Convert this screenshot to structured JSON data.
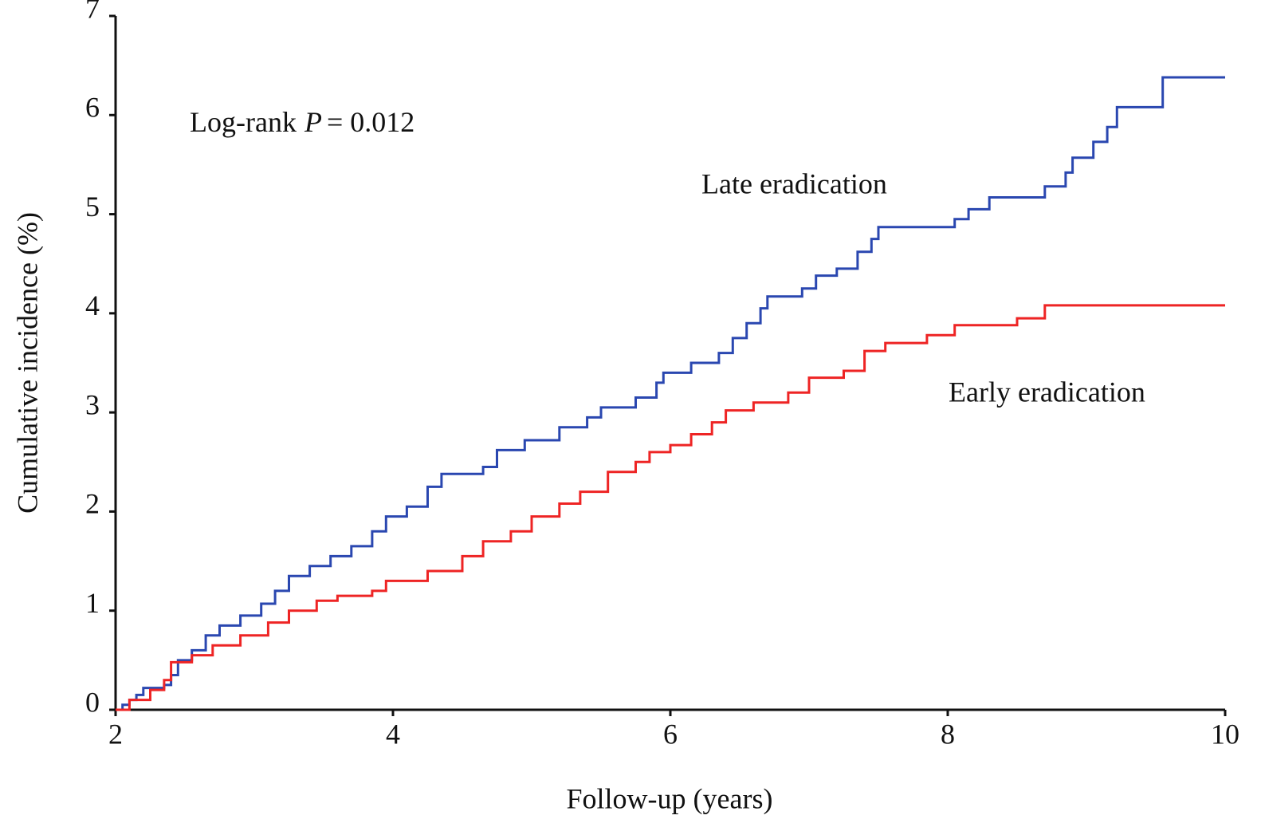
{
  "chart_data": {
    "type": "step",
    "x_label": "Follow-up (years)",
    "y_label": "Cumulative incidence (%)",
    "annotation": {
      "text": "Log-rank",
      "symbol": "P",
      "value": "= 0.012"
    },
    "xlim": [
      2,
      10
    ],
    "xticks": [
      2,
      4,
      6,
      8,
      10
    ],
    "ylim": [
      0,
      7
    ],
    "yticks": [
      0,
      1,
      2,
      3,
      4,
      5,
      6,
      7
    ],
    "grid": false,
    "series": [
      {
        "name": "Late eradication",
        "color": "#2a47b0",
        "x": [
          2.0,
          2.05,
          2.1,
          2.15,
          2.2,
          2.35,
          2.4,
          2.45,
          2.55,
          2.65,
          2.75,
          2.9,
          3.05,
          3.15,
          3.25,
          3.4,
          3.55,
          3.7,
          3.85,
          3.95,
          4.1,
          4.25,
          4.35,
          4.65,
          4.75,
          4.95,
          5.2,
          5.4,
          5.5,
          5.75,
          5.9,
          5.95,
          6.15,
          6.35,
          6.45,
          6.55,
          6.65,
          6.7,
          6.95,
          7.05,
          7.2,
          7.35,
          7.45,
          7.5,
          8.05,
          8.15,
          8.3,
          8.7,
          8.85,
          8.9,
          9.05,
          9.15,
          9.22,
          9.55,
          10.0
        ],
        "values": [
          0,
          0.05,
          0.1,
          0.15,
          0.22,
          0.25,
          0.35,
          0.5,
          0.6,
          0.75,
          0.85,
          0.95,
          1.07,
          1.2,
          1.35,
          1.45,
          1.55,
          1.65,
          1.8,
          1.95,
          2.05,
          2.25,
          2.38,
          2.45,
          2.62,
          2.72,
          2.85,
          2.95,
          3.05,
          3.15,
          3.3,
          3.4,
          3.5,
          3.6,
          3.75,
          3.9,
          4.05,
          4.17,
          4.25,
          4.38,
          4.45,
          4.62,
          4.75,
          4.87,
          4.95,
          5.05,
          5.17,
          5.28,
          5.42,
          5.57,
          5.73,
          5.88,
          6.08,
          6.38,
          6.38
        ]
      },
      {
        "name": "Early eradication",
        "color": "#ee2424",
        "x": [
          2.0,
          2.1,
          2.25,
          2.35,
          2.4,
          2.55,
          2.7,
          2.9,
          3.1,
          3.25,
          3.45,
          3.6,
          3.85,
          3.95,
          4.25,
          4.5,
          4.65,
          4.85,
          5.0,
          5.2,
          5.35,
          5.55,
          5.75,
          5.85,
          6.0,
          6.15,
          6.3,
          6.4,
          6.6,
          6.85,
          7.0,
          7.25,
          7.4,
          7.55,
          7.85,
          8.05,
          8.5,
          8.7,
          10.0
        ],
        "values": [
          0,
          0.1,
          0.2,
          0.3,
          0.48,
          0.55,
          0.65,
          0.75,
          0.88,
          1.0,
          1.1,
          1.15,
          1.2,
          1.3,
          1.4,
          1.55,
          1.7,
          1.8,
          1.95,
          2.08,
          2.2,
          2.4,
          2.5,
          2.6,
          2.67,
          2.78,
          2.9,
          3.02,
          3.1,
          3.2,
          3.35,
          3.42,
          3.62,
          3.7,
          3.78,
          3.88,
          3.95,
          4.08,
          4.08
        ]
      }
    ]
  }
}
